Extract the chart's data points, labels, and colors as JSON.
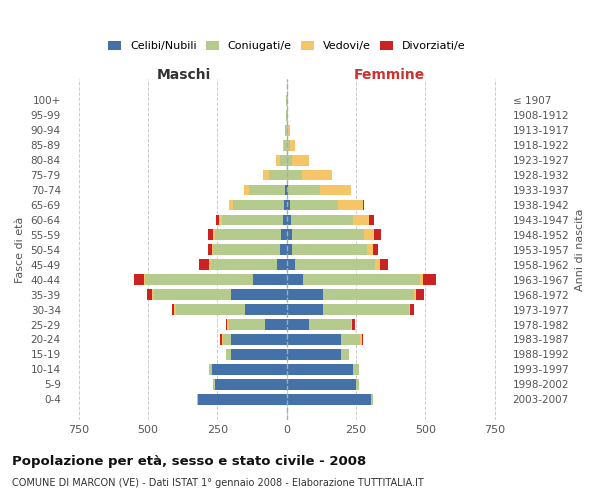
{
  "age_groups": [
    "0-4",
    "5-9",
    "10-14",
    "15-19",
    "20-24",
    "25-29",
    "30-34",
    "35-39",
    "40-44",
    "45-49",
    "50-54",
    "55-59",
    "60-64",
    "65-69",
    "70-74",
    "75-79",
    "80-84",
    "85-89",
    "90-94",
    "95-99",
    "100+"
  ],
  "birth_years": [
    "2003-2007",
    "1998-2002",
    "1993-1997",
    "1988-1992",
    "1983-1987",
    "1978-1982",
    "1973-1977",
    "1968-1972",
    "1963-1967",
    "1958-1962",
    "1953-1957",
    "1948-1952",
    "1943-1947",
    "1938-1942",
    "1933-1937",
    "1928-1932",
    "1923-1927",
    "1918-1922",
    "1913-1917",
    "1908-1912",
    "≤ 1907"
  ],
  "males": {
    "celibi": [
      320,
      260,
      270,
      200,
      200,
      80,
      150,
      200,
      120,
      35,
      25,
      20,
      15,
      10,
      5,
      0,
      0,
      0,
      0,
      0,
      0
    ],
    "coniugati": [
      5,
      5,
      10,
      20,
      30,
      130,
      250,
      280,
      390,
      240,
      240,
      240,
      220,
      185,
      130,
      65,
      25,
      10,
      5,
      3,
      2
    ],
    "vedovi": [
      0,
      0,
      0,
      0,
      5,
      5,
      5,
      5,
      5,
      5,
      5,
      5,
      10,
      15,
      20,
      20,
      15,
      5,
      2,
      1,
      0
    ],
    "divorziati": [
      0,
      0,
      0,
      0,
      5,
      5,
      10,
      20,
      35,
      35,
      15,
      20,
      10,
      0,
      0,
      0,
      0,
      0,
      0,
      0,
      0
    ]
  },
  "females": {
    "nubili": [
      305,
      250,
      240,
      195,
      195,
      80,
      130,
      130,
      60,
      30,
      20,
      20,
      15,
      10,
      5,
      0,
      0,
      0,
      0,
      0,
      0
    ],
    "coniugate": [
      5,
      10,
      20,
      30,
      70,
      150,
      310,
      330,
      420,
      290,
      270,
      260,
      225,
      175,
      115,
      55,
      20,
      10,
      5,
      3,
      2
    ],
    "vedove": [
      0,
      0,
      0,
      0,
      5,
      5,
      5,
      5,
      10,
      15,
      20,
      35,
      55,
      90,
      110,
      110,
      60,
      20,
      8,
      3,
      1
    ],
    "divorziate": [
      0,
      0,
      0,
      0,
      5,
      10,
      15,
      30,
      50,
      30,
      20,
      25,
      20,
      5,
      0,
      0,
      0,
      0,
      0,
      0,
      0
    ]
  },
  "colors": {
    "celibi": "#4472a8",
    "coniugati": "#b5cb8e",
    "vedovi": "#f5c567",
    "divorziati": "#cc2222"
  },
  "xlim": 800,
  "title": "Popolazione per età, sesso e stato civile - 2008",
  "subtitle": "COMUNE DI MARCON (VE) - Dati ISTAT 1° gennaio 2008 - Elaborazione TUTTITALIA.IT",
  "xlabel_left": "Maschi",
  "xlabel_right": "Femmine",
  "ylabel_left": "Fasce di età",
  "ylabel_right": "Anni di nascita",
  "legend_labels": [
    "Celibi/Nubili",
    "Coniugati/e",
    "Vedovi/e",
    "Divorziati/e"
  ],
  "legend_colors": [
    "#4472a8",
    "#b5cb8e",
    "#f5c567",
    "#cc2222"
  ],
  "bg_color": "#ffffff",
  "grid_color": "#cccccc"
}
